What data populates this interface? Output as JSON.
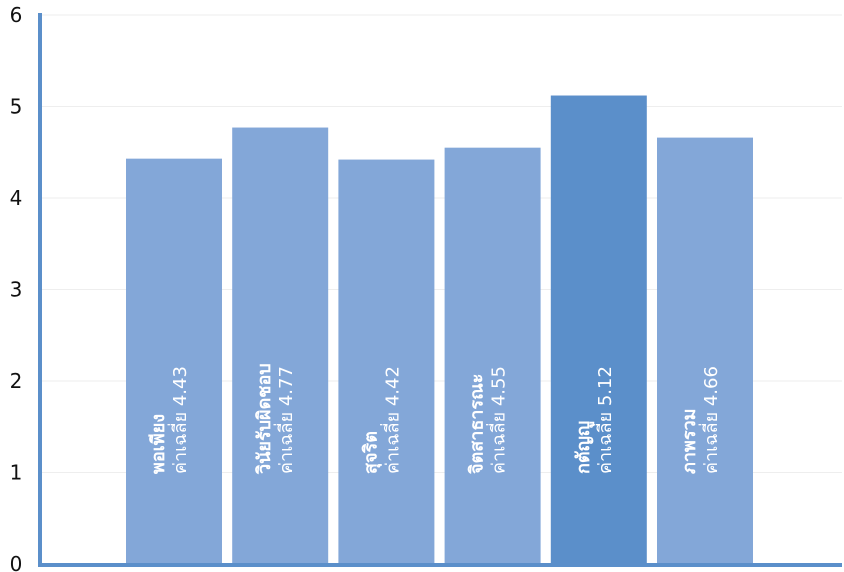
{
  "chart_data": {
    "type": "bar",
    "title": "",
    "xlabel": "",
    "ylabel": "",
    "ylim": [
      0,
      6
    ],
    "y_ticks": [
      "0",
      "1",
      "2",
      "3",
      "4",
      "5",
      "6"
    ],
    "grid": true,
    "categories": [
      "พอเพียง",
      "วินัยรับผิดชอบ",
      "สุจริต",
      "จิตสาธารณะ",
      "กตัญญู",
      "ภาพรวม"
    ],
    "values": [
      4.43,
      4.77,
      4.42,
      4.55,
      5.12,
      4.66
    ],
    "bar_labels": [
      "ค่าเฉลี่ย 4.43",
      "ค่าเฉลี่ย 4.77",
      "ค่าเฉลี่ย 4.42",
      "ค่าเฉลี่ย 4.55",
      "ค่าเฉลี่ย 5.12",
      "ค่าเฉลี่ย 4.66"
    ],
    "highlight_index": 4,
    "colors": {
      "bar": "#83A7D8",
      "bar_highlight": "#5B8FCA",
      "axis": "#5B8FCA",
      "grid": "#EEEEEE"
    }
  }
}
